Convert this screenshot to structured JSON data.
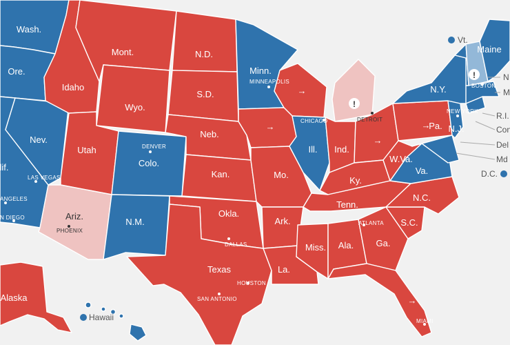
{
  "colors": {
    "rep": "#d9473f",
    "dem": "#2f73ad",
    "rep_lean": "#efc3c1",
    "dem_lean": "#93b8d8",
    "background": "#f1f1f1"
  },
  "states": {
    "wa": "Wash.",
    "or": "Ore.",
    "ca": "lif.",
    "nv": "Nev.",
    "id": "Idaho",
    "mt": "Mont.",
    "wy": "Wyo.",
    "ut": "Utah",
    "az": "Ariz.",
    "co": "Colo.",
    "nm": "N.M.",
    "nd": "N.D.",
    "sd": "S.D.",
    "ne": "Neb.",
    "ks": "Kan.",
    "ok": "Okla.",
    "tx": "Texas",
    "mn": "Minn.",
    "mo": "Mo.",
    "ar": "Ark.",
    "la": "La.",
    "il": "Ill.",
    "in": "Ind.",
    "ky": "Ky.",
    "tn": "Tenn.",
    "ms": "Miss.",
    "al": "Ala.",
    "ga": "Ga.",
    "sc": "S.C.",
    "nc": "N.C.",
    "va": "Va.",
    "wv": "W.Va.",
    "pa": "Pa.",
    "ny": "N.Y.",
    "nj": "N.J.",
    "me": "Maine",
    "ak": "Alaska"
  },
  "side_labels": {
    "vt": "Vt.",
    "nh": "N",
    "ma": "M",
    "ri": "R.I.",
    "ct": "Con",
    "de": "Del",
    "md": "Md",
    "dc": "D.C.",
    "hi": "Hawaii"
  },
  "cities": {
    "minneapolis": "MINNEAPOLIS",
    "denver": "DENVER",
    "las_vegas": "LAS VEGAS",
    "los_angeles": "ANGELES",
    "san_diego": "N DIEGO",
    "phoenix": "PHOENIX",
    "chicago": "CHICAGO",
    "detroit": "DETROIT",
    "new_york": "NEW YORK",
    "boston": "BOSTON",
    "atlanta": "ATLANTA",
    "dallas": "DALLAS",
    "houston": "HOUSTON",
    "san_antonio": "SAN ANTONIO",
    "miami": "MIAMI"
  },
  "markers": {
    "flip_arrow": "→",
    "alert": "!"
  }
}
